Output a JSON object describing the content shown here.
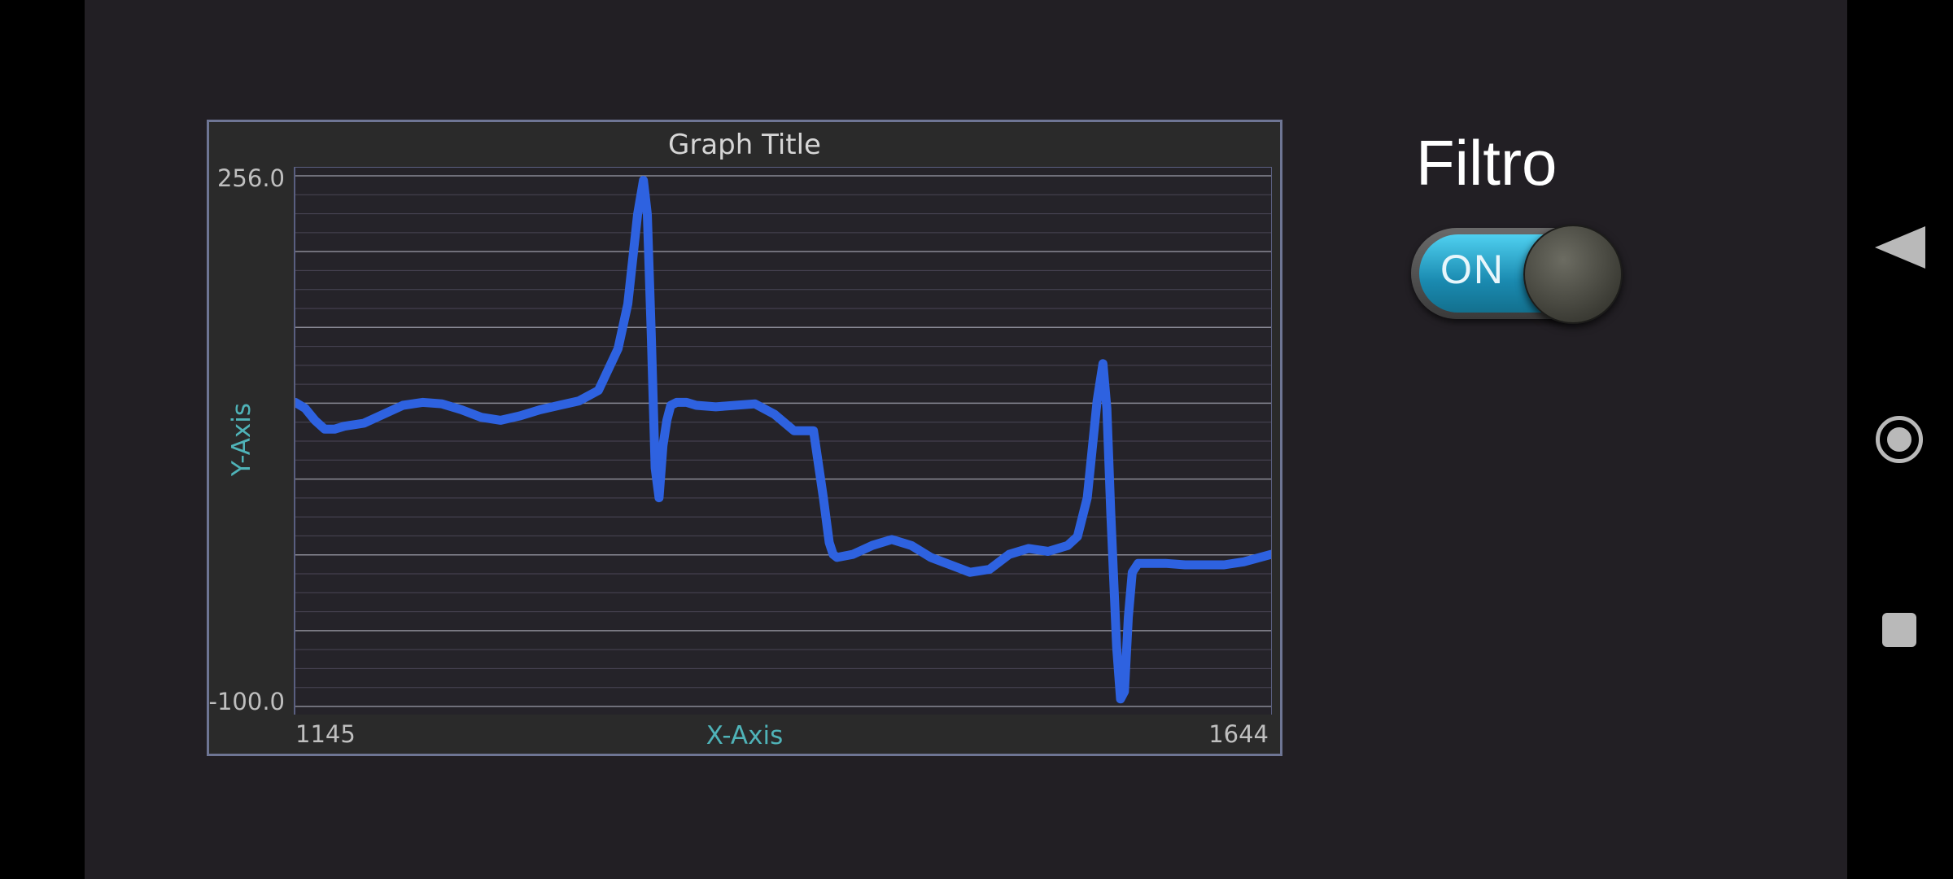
{
  "graph": {
    "title": "Graph Title",
    "x_axis_label": "X-Axis",
    "y_axis_label": "Y-Axis",
    "y_max_label": "256.0",
    "y_min_label": "-100.0",
    "x_min_label": "1145",
    "x_max_label": "1644",
    "line_color": "#2e62e0",
    "label_color": "#4fb3b8"
  },
  "filter": {
    "title": "Filtro",
    "toggle_label": "ON",
    "toggle_state": "on"
  },
  "nav": {
    "back_icon": "triangle-back-icon",
    "home_icon": "circle-home-icon",
    "recent_icon": "square-recent-icon"
  },
  "chart_data": {
    "type": "line",
    "title": "Graph Title",
    "xlabel": "X-Axis",
    "ylabel": "Y-Axis",
    "xlim": [
      1145,
      1644
    ],
    "ylim": [
      -100,
      256
    ],
    "grid": true,
    "series": [
      {
        "x": [
          1145,
          1150,
          1155,
          1160,
          1165,
          1170,
          1180,
          1190,
          1200,
          1210,
          1220,
          1230,
          1240,
          1250,
          1260,
          1270,
          1280,
          1290,
          1300,
          1310,
          1315,
          1320,
          1323,
          1325,
          1327,
          1329,
          1331,
          1333,
          1335,
          1337,
          1340,
          1345,
          1350,
          1360,
          1370,
          1380,
          1390,
          1400,
          1410,
          1415,
          1418,
          1420,
          1422,
          1430,
          1440,
          1450,
          1460,
          1470,
          1480,
          1490,
          1500,
          1510,
          1520,
          1530,
          1540,
          1545,
          1550,
          1555,
          1558,
          1560,
          1562,
          1565,
          1567,
          1569,
          1571,
          1573,
          1576,
          1580,
          1590,
          1600,
          1610,
          1620,
          1630,
          1644
        ],
        "y": [
          104,
          100,
          92,
          86,
          86,
          88,
          90,
          96,
          102,
          104,
          103,
          99,
          94,
          92,
          95,
          99,
          102,
          105,
          112,
          140,
          170,
          230,
          253,
          230,
          150,
          60,
          40,
          75,
          92,
          102,
          104,
          104,
          102,
          101,
          102,
          103,
          96,
          85,
          85,
          40,
          10,
          2,
          0,
          2,
          8,
          12,
          8,
          0,
          -5,
          -10,
          -8,
          2,
          6,
          4,
          8,
          14,
          40,
          105,
          130,
          100,
          30,
          -60,
          -95,
          -90,
          -40,
          -10,
          -4,
          -4,
          -4,
          -5,
          -5,
          -5,
          -3,
          2
        ]
      }
    ]
  }
}
